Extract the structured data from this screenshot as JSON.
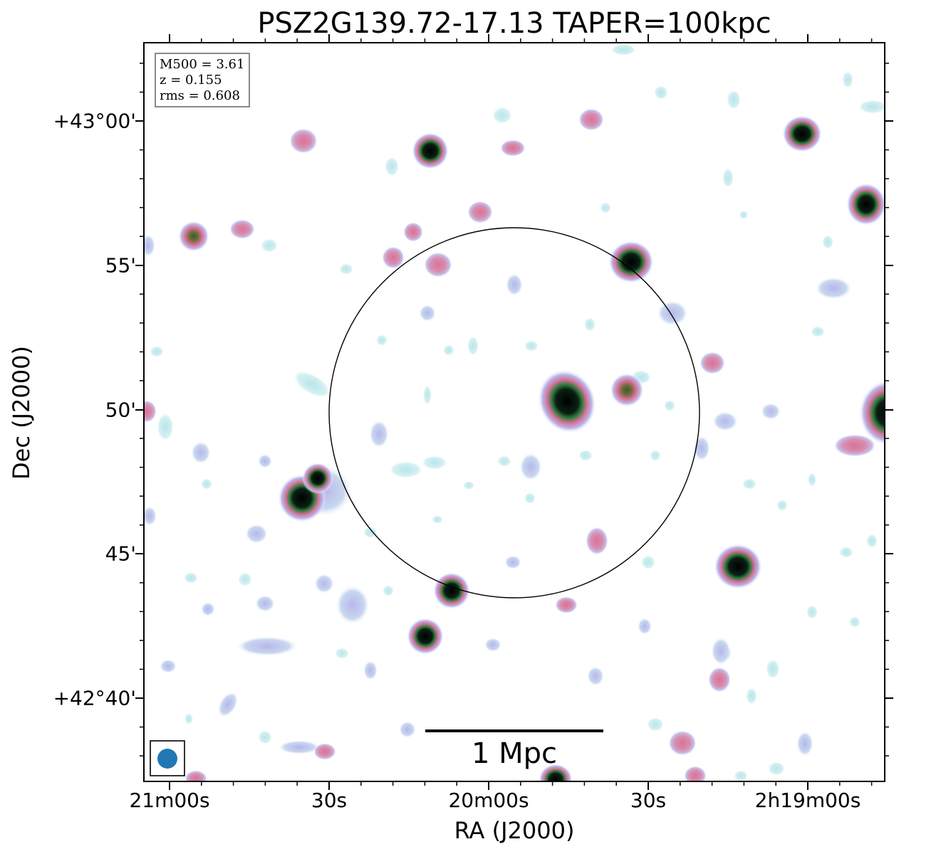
{
  "figure": {
    "title": "PSZ2G139.72-17.13 TAPER=100kpc",
    "xlabel": "RA (J2000)",
    "ylabel": "Dec (J2000)"
  },
  "info_box": {
    "lines": [
      "M500 = 3.61",
      "z = 0.155",
      "rms = 0.608"
    ]
  },
  "axes": {
    "x_ticks": [
      "21m00s",
      "30s",
      "20m00s",
      "30s",
      "2h19m00s"
    ],
    "y_ticks": [
      "+43°00'",
      "55'",
      "50'",
      "45'",
      "+42°40'"
    ]
  },
  "scale_bar": {
    "label": "1 Mpc"
  },
  "colors": {
    "faint_emission": "#b7e6ea",
    "low_emission": "#b8b6ea",
    "mid_emission": "#d7729a",
    "high_emission": "#2f7a3c",
    "peak_emission": "#000000",
    "beam": "#2178b4"
  }
}
